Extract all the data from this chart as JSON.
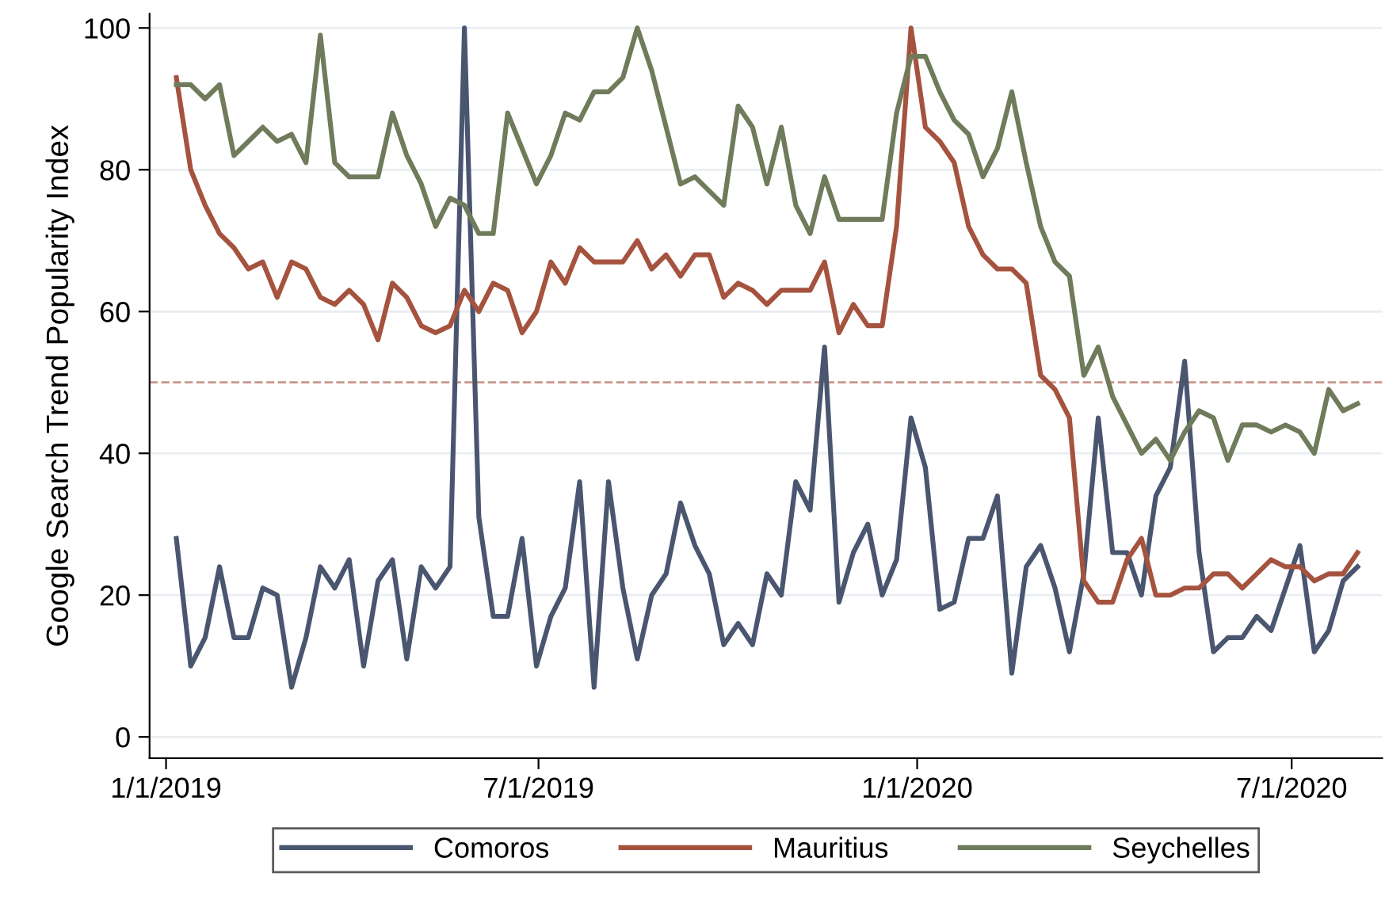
{
  "chart_data": {
    "type": "line",
    "ylabel": "Google Search Trend Popularity Index",
    "x": [
      "2019-01-06",
      "2019-01-13",
      "2019-01-20",
      "2019-01-27",
      "2019-02-03",
      "2019-02-10",
      "2019-02-17",
      "2019-02-24",
      "2019-03-03",
      "2019-03-10",
      "2019-03-17",
      "2019-03-24",
      "2019-03-31",
      "2019-04-07",
      "2019-04-14",
      "2019-04-21",
      "2019-04-28",
      "2019-05-05",
      "2019-05-12",
      "2019-05-19",
      "2019-05-26",
      "2019-06-02",
      "2019-06-09",
      "2019-06-16",
      "2019-06-23",
      "2019-06-30",
      "2019-07-07",
      "2019-07-14",
      "2019-07-21",
      "2019-07-28",
      "2019-08-04",
      "2019-08-11",
      "2019-08-18",
      "2019-08-25",
      "2019-09-01",
      "2019-09-08",
      "2019-09-15",
      "2019-09-22",
      "2019-09-29",
      "2019-10-06",
      "2019-10-13",
      "2019-10-20",
      "2019-10-27",
      "2019-11-03",
      "2019-11-10",
      "2019-11-17",
      "2019-11-24",
      "2019-12-01",
      "2019-12-08",
      "2019-12-15",
      "2019-12-22",
      "2019-12-29",
      "2020-01-05",
      "2020-01-12",
      "2020-01-19",
      "2020-01-26",
      "2020-02-02",
      "2020-02-09",
      "2020-02-16",
      "2020-02-23",
      "2020-03-01",
      "2020-03-08",
      "2020-03-15",
      "2020-03-22",
      "2020-03-29",
      "2020-04-05",
      "2020-04-12",
      "2020-04-19",
      "2020-04-26",
      "2020-05-03",
      "2020-05-10",
      "2020-05-17",
      "2020-05-24",
      "2020-05-31",
      "2020-06-07",
      "2020-06-14",
      "2020-06-21",
      "2020-06-28",
      "2020-07-05",
      "2020-07-12",
      "2020-07-19",
      "2020-07-26",
      "2020-08-02"
    ],
    "series": [
      {
        "name": "Comoros",
        "color": "#4a5670",
        "values": [
          28,
          10,
          14,
          24,
          14,
          14,
          21,
          20,
          7,
          14,
          24,
          21,
          25,
          10,
          22,
          25,
          11,
          24,
          21,
          24,
          100,
          31,
          17,
          17,
          28,
          10,
          17,
          21,
          36,
          7,
          36,
          21,
          11,
          20,
          23,
          33,
          27,
          23,
          13,
          16,
          13,
          23,
          20,
          36,
          32,
          55,
          19,
          26,
          30,
          20,
          25,
          45,
          38,
          18,
          19,
          28,
          28,
          34,
          9,
          24,
          27,
          21,
          12,
          23,
          45,
          26,
          26,
          20,
          34,
          38,
          53,
          26,
          12,
          14,
          14,
          17,
          15,
          21,
          27,
          12,
          15,
          22,
          24
        ]
      },
      {
        "name": "Mauritius",
        "color": "#a5533f",
        "values": [
          93,
          80,
          75,
          71,
          69,
          66,
          67,
          62,
          67,
          66,
          62,
          61,
          63,
          61,
          56,
          64,
          62,
          58,
          57,
          58,
          63,
          60,
          64,
          63,
          57,
          60,
          67,
          64,
          69,
          67,
          67,
          67,
          70,
          66,
          68,
          65,
          68,
          68,
          62,
          64,
          63,
          61,
          63,
          63,
          63,
          67,
          57,
          61,
          58,
          58,
          72,
          100,
          86,
          84,
          81,
          72,
          68,
          66,
          66,
          64,
          51,
          49,
          45,
          22,
          19,
          19,
          25,
          28,
          20,
          20,
          21,
          21,
          23,
          23,
          21,
          23,
          25,
          24,
          24,
          22,
          23,
          23,
          26
        ]
      },
      {
        "name": "Seychelles",
        "color": "#6f7b5a",
        "values": [
          92,
          92,
          90,
          92,
          82,
          84,
          86,
          84,
          85,
          81,
          99,
          81,
          79,
          79,
          79,
          88,
          82,
          78,
          72,
          76,
          75,
          71,
          71,
          88,
          83,
          78,
          82,
          88,
          87,
          91,
          91,
          93,
          100,
          94,
          86,
          78,
          79,
          77,
          75,
          89,
          86,
          78,
          86,
          75,
          71,
          79,
          73,
          73,
          73,
          73,
          88,
          96,
          96,
          91,
          87,
          85,
          79,
          83,
          91,
          81,
          72,
          67,
          65,
          51,
          55,
          48,
          44,
          40,
          42,
          39,
          43,
          46,
          45,
          39,
          44,
          44,
          43,
          44,
          43,
          40,
          49,
          46,
          47
        ]
      }
    ],
    "xlim": [
      "2018-12-24",
      "2020-08-14"
    ],
    "xticks": [
      {
        "value": "2019-01-01",
        "label": "1/1/2019"
      },
      {
        "value": "2019-07-01",
        "label": "7/1/2019"
      },
      {
        "value": "2020-01-01",
        "label": "1/1/2020"
      },
      {
        "value": "2020-07-01",
        "label": "7/1/2020"
      }
    ],
    "ylim": [
      -3,
      102
    ],
    "yticks": [
      0,
      20,
      40,
      60,
      80,
      100
    ],
    "ref_lines": [
      {
        "axis": "y",
        "value": 50,
        "color": "#c8968a",
        "line_style": "dashed"
      }
    ],
    "grid": "y",
    "legend": "bottom",
    "marker": "none",
    "line_style": "solid"
  }
}
